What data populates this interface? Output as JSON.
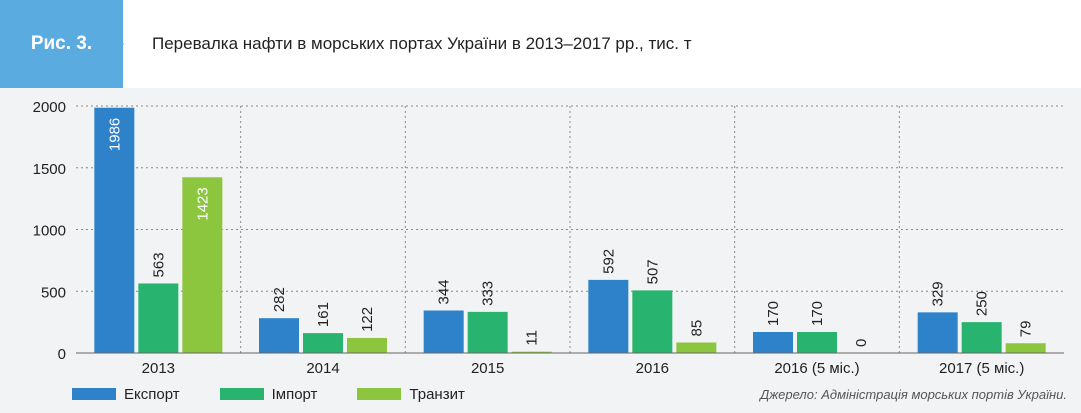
{
  "header": {
    "fig_label": "Рис. 3.",
    "title": "Перевалка нафти в морських портах України в 2013–2017 рр., тис. т"
  },
  "source": "Джерело: Адміністрація морських портів України.",
  "colors": {
    "export": "#2d82c9",
    "import": "#28b46e",
    "transit": "#8cc63f",
    "fig_tag": "#5aace0"
  },
  "chart_data": {
    "type": "bar",
    "title": "Перевалка нафти в морських портах України в 2013–2017 рр., тис. т",
    "categories": [
      "2013",
      "2014",
      "2015",
      "2016",
      "2016 (5 міс.)",
      "2017 (5 міс.)"
    ],
    "series": [
      {
        "name": "Експорт",
        "values": [
          1986,
          282,
          344,
          592,
          170,
          329
        ]
      },
      {
        "name": "Імпорт",
        "values": [
          563,
          161,
          333,
          507,
          170,
          250
        ]
      },
      {
        "name": "Транзит",
        "values": [
          1423,
          122,
          11,
          85,
          0,
          79
        ]
      }
    ],
    "y_ticks": [
      "0",
      "500",
      "1000",
      "1500",
      "2000"
    ],
    "ylim": [
      0,
      2000
    ],
    "grid": true,
    "legend_position": "bottom-left"
  }
}
